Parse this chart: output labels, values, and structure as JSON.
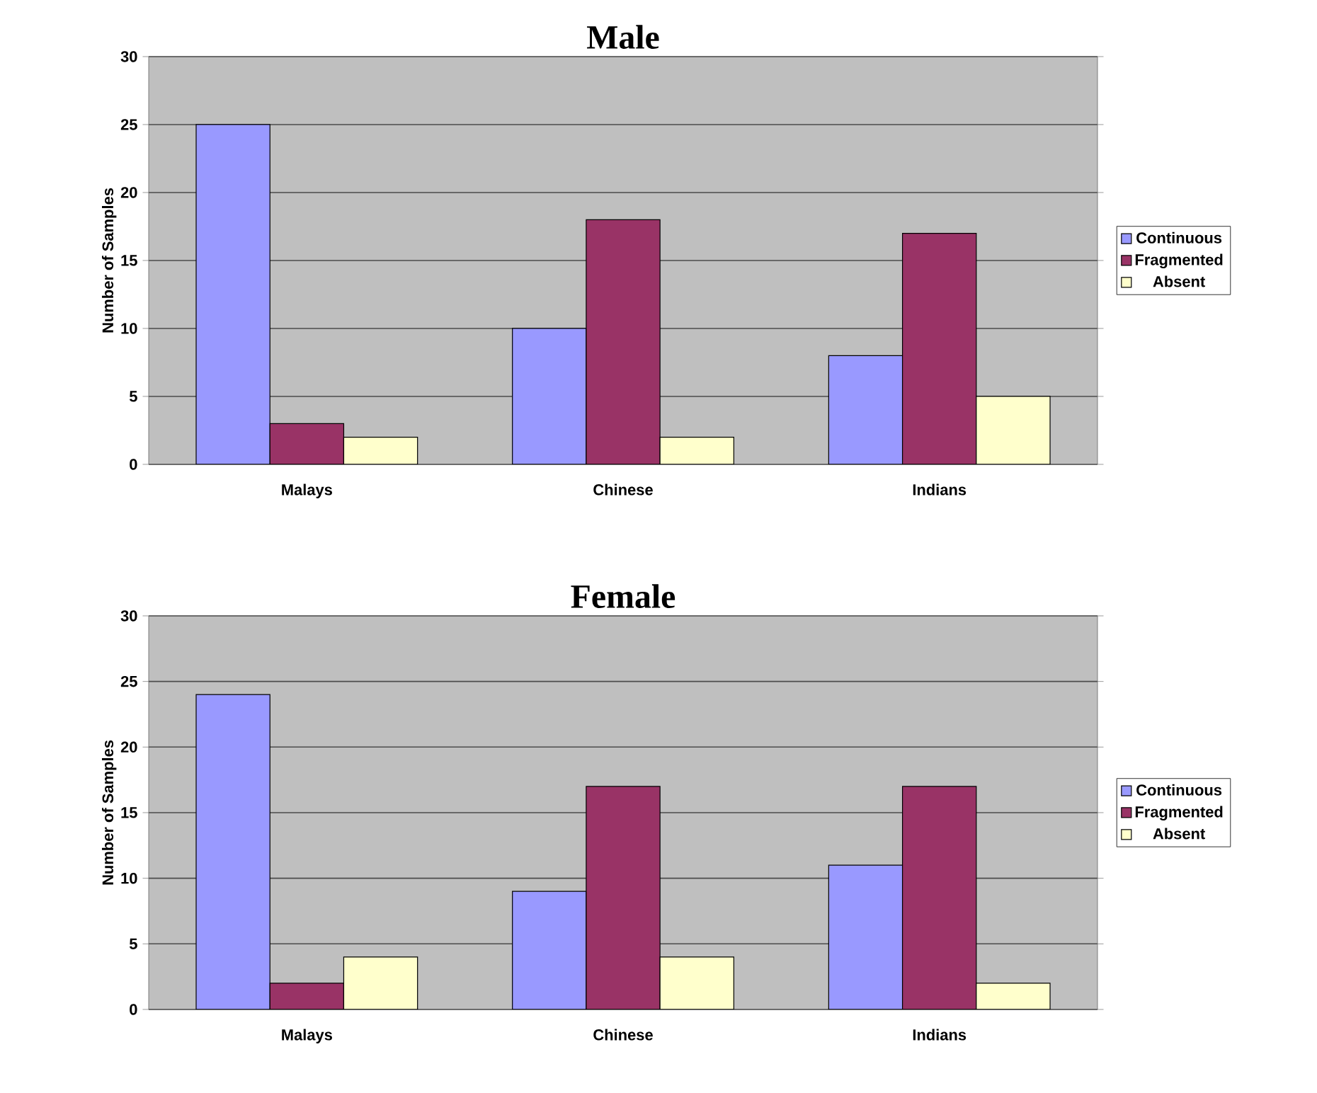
{
  "chart_data": [
    {
      "type": "bar",
      "title": "Male",
      "ylabel": "Number of Samples",
      "categories": [
        "Malays",
        "Chinese",
        "Indians"
      ],
      "ylim": [
        0,
        30
      ],
      "yticks": [
        0,
        5,
        10,
        15,
        20,
        25,
        30
      ],
      "grid": "y",
      "legend": "right",
      "series": [
        {
          "name": "Continuous",
          "color": "#9999ff",
          "values": [
            25,
            10,
            8
          ]
        },
        {
          "name": "Fragmented",
          "color": "#993366",
          "values": [
            3,
            18,
            17
          ]
        },
        {
          "name": "Absent",
          "color": "#ffffcc",
          "values": [
            2,
            2,
            5
          ]
        }
      ]
    },
    {
      "type": "bar",
      "title": "Female",
      "ylabel": "Number of Samples",
      "categories": [
        "Malays",
        "Chinese",
        "Indians"
      ],
      "ylim": [
        0,
        30
      ],
      "yticks": [
        0,
        5,
        10,
        15,
        20,
        25,
        30
      ],
      "grid": "y",
      "legend": "right",
      "series": [
        {
          "name": "Continuous",
          "color": "#9999ff",
          "values": [
            24,
            9,
            11
          ]
        },
        {
          "name": "Fragmented",
          "color": "#993366",
          "values": [
            2,
            17,
            17
          ]
        },
        {
          "name": "Absent",
          "color": "#ffffcc",
          "values": [
            4,
            4,
            2
          ]
        }
      ]
    }
  ]
}
